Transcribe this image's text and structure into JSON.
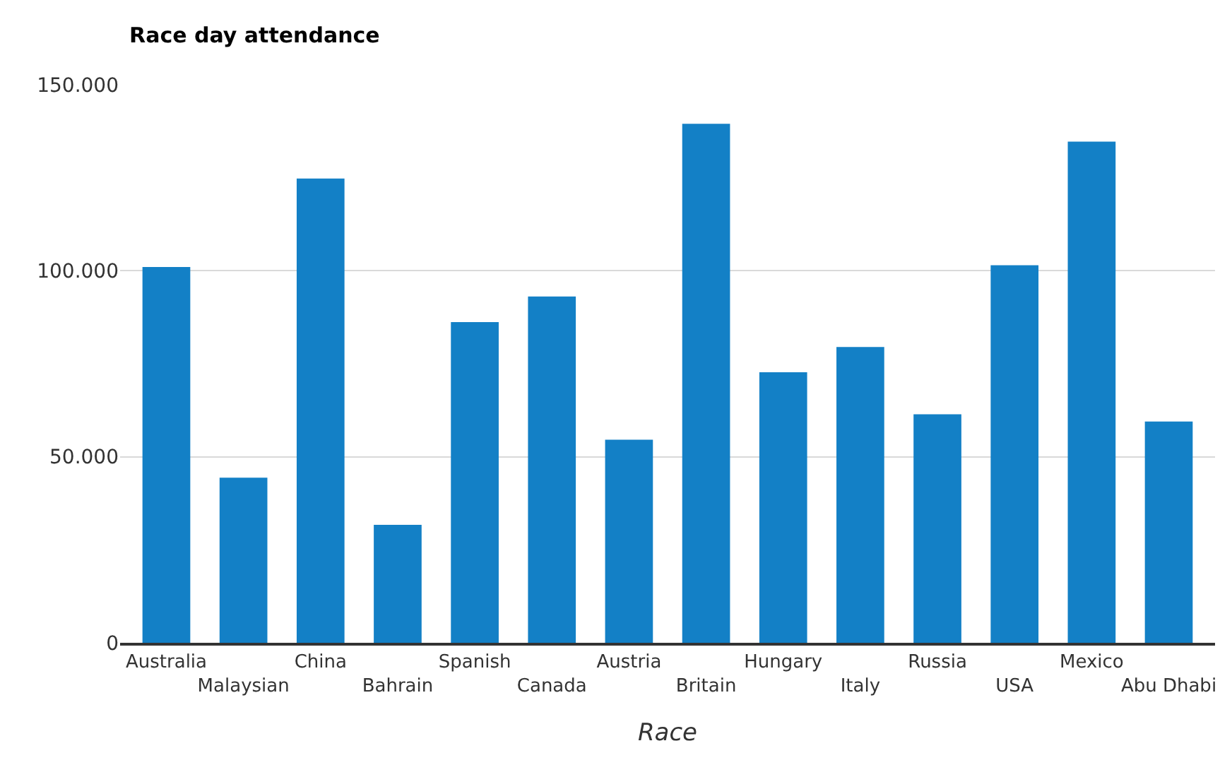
{
  "chart_data": {
    "type": "bar",
    "title": "Race day attendance",
    "xlabel": "Race",
    "categories": [
      "Australia",
      "Malaysian",
      "China",
      "Bahrain",
      "Spanish",
      "Canada",
      "Austria",
      "Britain",
      "Hungary",
      "Italy",
      "Russia",
      "USA",
      "Mexico",
      "Abu Dhabi"
    ],
    "values": [
      101000,
      44400,
      124800,
      31700,
      86200,
      93100,
      54600,
      139500,
      72700,
      79500,
      61400,
      101500,
      134700,
      59500
    ],
    "color": "#1380c6",
    "ylim": [
      0,
      150000
    ],
    "yticks": [
      {
        "value": 0,
        "label": "0"
      },
      {
        "value": 50000,
        "label": "50.000"
      },
      {
        "value": 100000,
        "label": "100.000"
      },
      {
        "value": 150000,
        "label": "150.000"
      }
    ],
    "grid": "y"
  }
}
